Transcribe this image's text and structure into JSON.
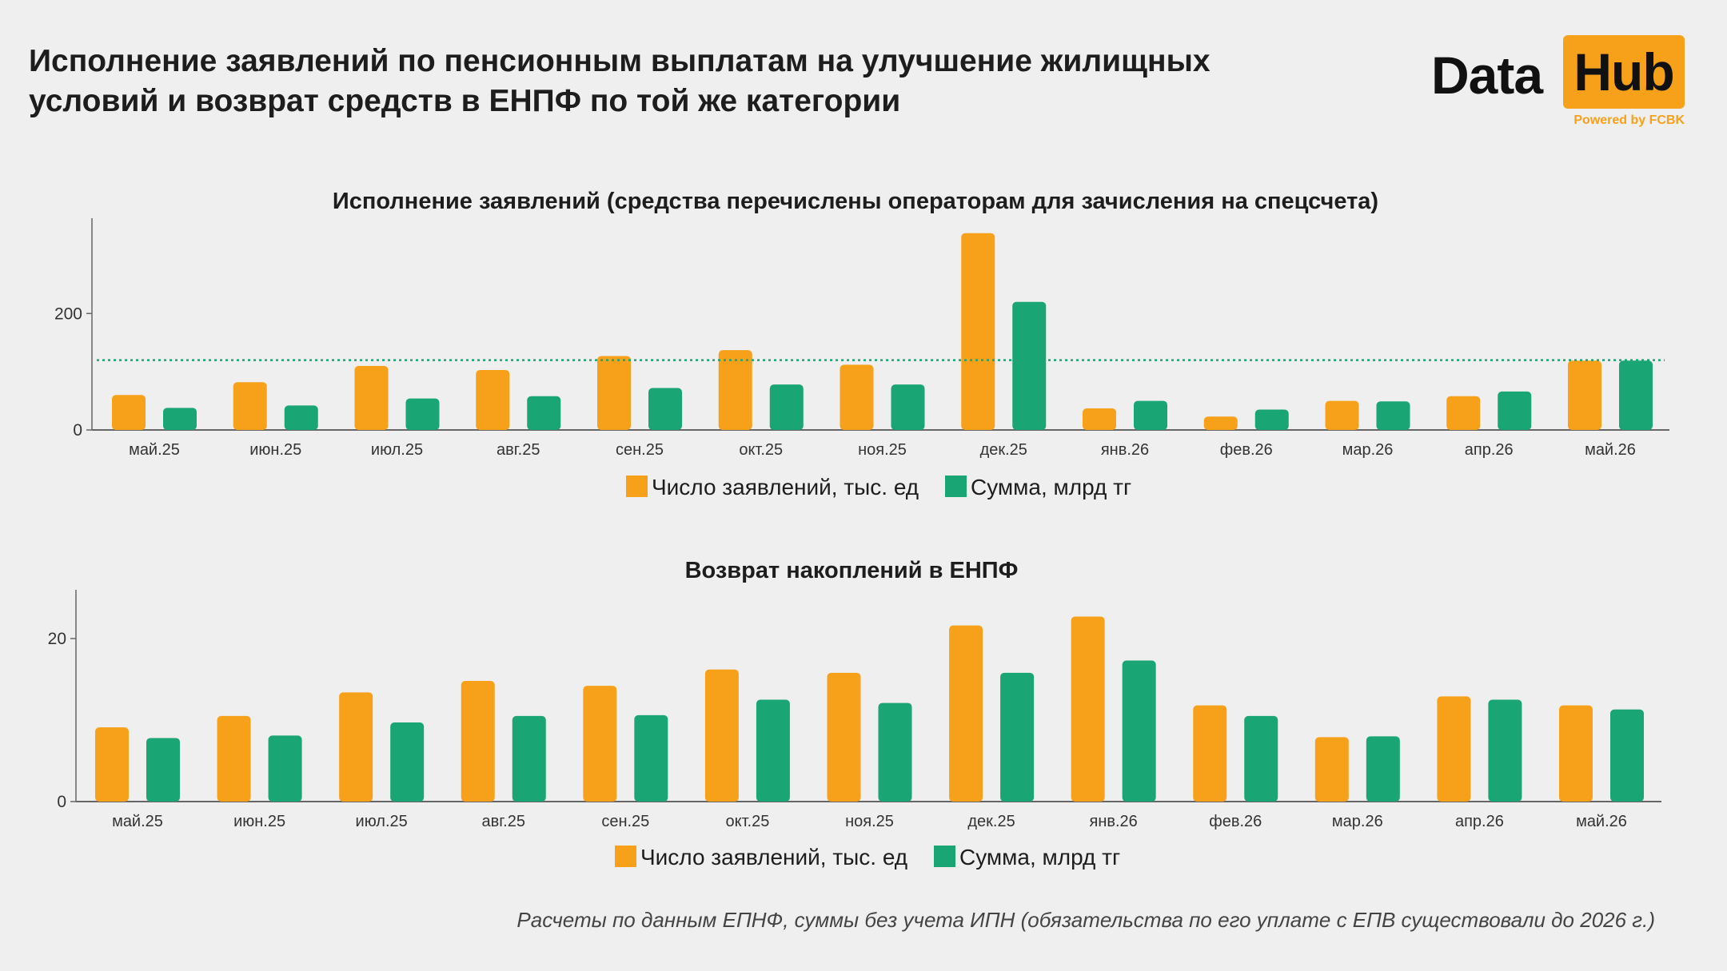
{
  "title": "Исполнение заявлений по пенсионным выплатам на улучшение жилищных условий и возврат средств в ЕНПФ по той же категории",
  "logo": {
    "word1": "Data",
    "word2": "Hub",
    "tagline": "Powered by FCBK"
  },
  "colors": {
    "orange": "#f7a11a",
    "green": "#1aa574",
    "reference_line": "#1aa574",
    "axis": "#666666"
  },
  "footnote": "Расчеты по данным ЕПНФ, суммы без учета ИПН (обязательства по его уплате с ЕПВ существовали до 2026 г.)",
  "chart_data": [
    {
      "type": "bar",
      "title": "Исполнение заявлений (средства перечислены операторам для зачисления на спецсчета)",
      "categories": [
        "май.25",
        "июн.25",
        "июл.25",
        "авг.25",
        "сен.25",
        "окт.25",
        "ноя.25",
        "дек.25",
        "янв.26",
        "фев.26",
        "мар.26",
        "апр.26",
        "май.26"
      ],
      "series": [
        {
          "name": "Число заявлений, тыс. ед",
          "color": "#f7a11a",
          "values": [
            60,
            82,
            110,
            103,
            127,
            137,
            112,
            338,
            37,
            23,
            50,
            58,
            119
          ]
        },
        {
          "name": "Сумма, млрд тг",
          "color": "#1aa574",
          "values": [
            38,
            42,
            54,
            58,
            72,
            78,
            78,
            220,
            50,
            35,
            49,
            66,
            119
          ]
        }
      ],
      "reference_line": {
        "value": 120,
        "style": "dotted"
      },
      "yticks": [
        0,
        200
      ],
      "ylim": [
        0,
        350
      ],
      "legend": "bottom-center",
      "grid": false
    },
    {
      "type": "bar",
      "title": "Возврат накоплений в ЕНПФ",
      "categories": [
        "май.25",
        "июн.25",
        "июл.25",
        "авг.25",
        "сен.25",
        "окт.25",
        "ноя.25",
        "дек.25",
        "янв.26",
        "фев.26",
        "мар.26",
        "апр.26",
        "май.26"
      ],
      "series": [
        {
          "name": "Число заявлений, тыс. ед",
          "color": "#f7a11a",
          "values": [
            9.1,
            10.5,
            13.4,
            14.8,
            14.2,
            16.2,
            15.8,
            21.6,
            22.7,
            11.8,
            7.9,
            12.9,
            11.8
          ]
        },
        {
          "name": "Сумма, млрд тг",
          "color": "#1aa574",
          "values": [
            7.8,
            8.1,
            9.7,
            10.5,
            10.6,
            12.5,
            12.1,
            15.8,
            17.3,
            10.5,
            8.0,
            12.5,
            11.3
          ]
        }
      ],
      "yticks": [
        0,
        20
      ],
      "ylim": [
        0,
        25
      ],
      "legend": "bottom-center",
      "grid": false
    }
  ]
}
